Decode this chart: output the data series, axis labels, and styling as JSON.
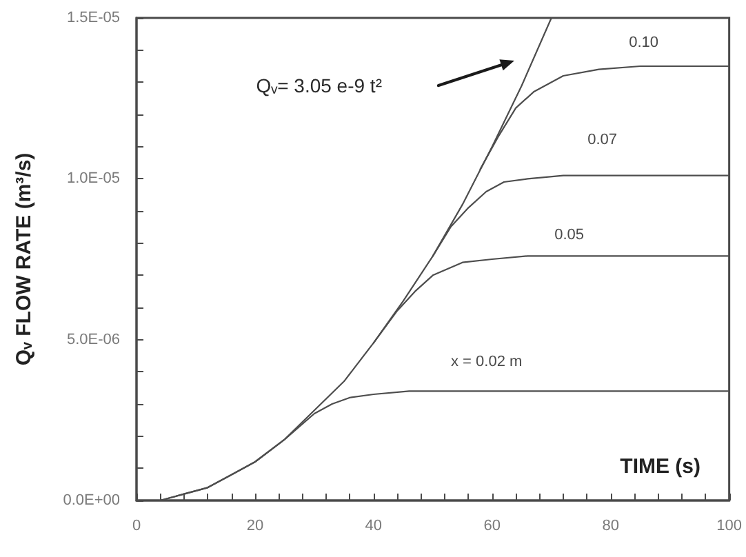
{
  "chart_data": {
    "type": "line",
    "xlabel": "TIME (s)",
    "ylabel": "Qᵥ FLOW RATE (m³/s)",
    "xlim": [
      0,
      100
    ],
    "ylim": [
      0,
      1.5e-05
    ],
    "xticks": [
      0,
      {
        "value": 4,
        "label": null
      },
      {
        "value": 8,
        "label": null
      },
      {
        "value": 12,
        "label": null
      },
      {
        "value": 16,
        "label": null
      },
      20,
      {
        "value": 24,
        "label": null
      },
      {
        "value": 28,
        "label": null
      },
      {
        "value": 32,
        "label": null
      },
      {
        "value": 36,
        "label": null
      },
      40,
      {
        "value": 44,
        "label": null
      },
      {
        "value": 48,
        "label": null
      },
      {
        "value": 52,
        "label": null
      },
      {
        "value": 56,
        "label": null
      },
      60,
      {
        "value": 64,
        "label": null
      },
      {
        "value": 68,
        "label": null
      },
      {
        "value": 72,
        "label": null
      },
      {
        "value": 76,
        "label": null
      },
      80,
      {
        "value": 84,
        "label": null
      },
      {
        "value": 88,
        "label": null
      },
      {
        "value": 92,
        "label": null
      },
      {
        "value": 96,
        "label": null
      },
      100
    ],
    "yticks": [
      {
        "value": 0,
        "label": "0.0E+00"
      },
      {
        "value": 1e-06,
        "label": null
      },
      {
        "value": 2e-06,
        "label": null
      },
      {
        "value": 3e-06,
        "label": null
      },
      {
        "value": 4e-06,
        "label": null
      },
      {
        "value": 5e-06,
        "label": "5.0E-06"
      },
      {
        "value": 6e-06,
        "label": null
      },
      {
        "value": 7e-06,
        "label": null
      },
      {
        "value": 8e-06,
        "label": null
      },
      {
        "value": 9e-06,
        "label": null
      },
      {
        "value": 1e-05,
        "label": "1.0E-05"
      },
      {
        "value": 1.1e-05,
        "label": null
      },
      {
        "value": 1.2e-05,
        "label": null
      },
      {
        "value": 1.3e-05,
        "label": null
      },
      {
        "value": 1.4e-05,
        "label": null
      },
      {
        "value": 1.5e-05,
        "label": "1.5E-05"
      }
    ],
    "series": [
      {
        "color": "#4d4d4d",
        "x": [
          4,
          8,
          12,
          16,
          20,
          25,
          30,
          35,
          40,
          45,
          50,
          55,
          60,
          65,
          70
        ],
        "values": [
          0,
          2e-07,
          4e-07,
          8e-07,
          1.2e-06,
          1.9e-06,
          2.8e-06,
          3.7e-06,
          4.9e-06,
          6.2e-06,
          7.6e-06,
          9.2e-06,
          1.1e-05,
          1.29e-05,
          1.5e-05
        ]
      },
      {
        "name": "x = 0.02 m",
        "color": "#4d4d4d",
        "x": [
          4,
          8,
          12,
          16,
          20,
          25,
          30,
          33,
          36,
          40,
          46,
          55,
          100
        ],
        "values": [
          0,
          2e-07,
          4e-07,
          8e-07,
          1.2e-06,
          1.9e-06,
          2.7e-06,
          3e-06,
          3.2e-06,
          3.3e-06,
          3.4e-06,
          3.4e-06,
          3.4e-06
        ]
      },
      {
        "name": "0.05",
        "color": "#4d4d4d",
        "x": [
          40,
          44,
          47,
          50,
          55,
          60,
          66,
          100
        ],
        "values": [
          4.9e-06,
          5.9e-06,
          6.5e-06,
          7e-06,
          7.4e-06,
          7.5e-06,
          7.6e-06,
          7.6e-06
        ]
      },
      {
        "name": "0.07",
        "color": "#4d4d4d",
        "x": [
          50,
          53,
          56,
          59,
          62,
          66,
          72,
          100
        ],
        "values": [
          7.6e-06,
          8.5e-06,
          9.1e-06,
          9.6e-06,
          9.9e-06,
          1e-05,
          1.01e-05,
          1.01e-05
        ]
      },
      {
        "name": "0.10",
        "color": "#4d4d4d",
        "x": [
          58,
          61,
          64,
          67,
          72,
          78,
          85,
          100
        ],
        "values": [
          1.03e-05,
          1.13e-05,
          1.22e-05,
          1.27e-05,
          1.32e-05,
          1.34e-05,
          1.35e-05,
          1.35e-05
        ]
      }
    ],
    "annotations": [
      "Qᵥ= 3.05 e-9 t²"
    ]
  }
}
